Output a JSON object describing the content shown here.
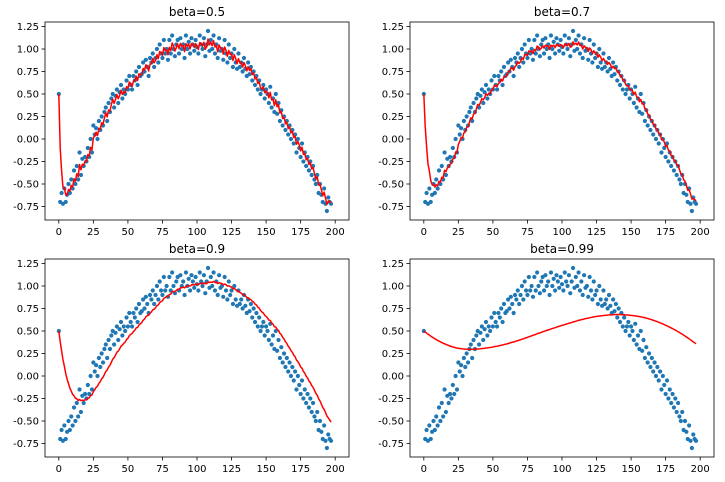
{
  "chart_data": [
    {
      "type": "scatter",
      "title": "beta=0.5",
      "beta": 0.5,
      "xlim": [
        -10,
        210
      ],
      "ylim": [
        -0.9,
        1.3
      ],
      "xticks": [
        0,
        25,
        50,
        75,
        100,
        125,
        150,
        175,
        200
      ],
      "yticks": [
        -0.75,
        -0.5,
        -0.25,
        0.0,
        0.25,
        0.5,
        0.75,
        1.0,
        1.25
      ],
      "series": [
        {
          "kind": "points",
          "color": "#1f77b4",
          "ref": "noisy_points"
        },
        {
          "kind": "line",
          "color": "#ff0000",
          "ref": "ewa"
        }
      ]
    },
    {
      "type": "scatter",
      "title": "beta=0.7",
      "beta": 0.7,
      "xlim": [
        -10,
        210
      ],
      "ylim": [
        -0.9,
        1.3
      ],
      "xticks": [
        0,
        25,
        50,
        75,
        100,
        125,
        150,
        175,
        200
      ],
      "yticks": [
        -0.75,
        -0.5,
        -0.25,
        0.0,
        0.25,
        0.5,
        0.75,
        1.0,
        1.25
      ],
      "series": [
        {
          "kind": "points",
          "color": "#1f77b4",
          "ref": "noisy_points"
        },
        {
          "kind": "line",
          "color": "#ff0000",
          "ref": "ewa"
        }
      ]
    },
    {
      "type": "scatter",
      "title": "beta=0.9",
      "beta": 0.9,
      "xlim": [
        -10,
        210
      ],
      "ylim": [
        -0.9,
        1.3
      ],
      "xticks": [
        0,
        25,
        50,
        75,
        100,
        125,
        150,
        175,
        200
      ],
      "yticks": [
        -0.75,
        -0.5,
        -0.25,
        0.0,
        0.25,
        0.5,
        0.75,
        1.0,
        1.25
      ],
      "series": [
        {
          "kind": "points",
          "color": "#1f77b4",
          "ref": "noisy_points"
        },
        {
          "kind": "line",
          "color": "#ff0000",
          "ref": "ewa"
        }
      ]
    },
    {
      "type": "scatter",
      "title": "beta=0.99",
      "beta": 0.99,
      "xlim": [
        -10,
        210
      ],
      "ylim": [
        -0.9,
        1.3
      ],
      "xticks": [
        0,
        25,
        50,
        75,
        100,
        125,
        150,
        175,
        200
      ],
      "yticks": [
        -0.75,
        -0.5,
        -0.25,
        0.0,
        0.25,
        0.5,
        0.75,
        1.0,
        1.25
      ],
      "series": [
        {
          "kind": "points",
          "color": "#1f77b4",
          "ref": "noisy_points"
        },
        {
          "kind": "line",
          "color": "#ff0000",
          "ref": "ewa"
        }
      ]
    }
  ],
  "noisy_points": {
    "x_start": 0,
    "x_step": 1,
    "y": [
      0.5,
      -0.7,
      -0.6,
      -0.72,
      -0.55,
      -0.7,
      -0.62,
      -0.5,
      -0.6,
      -0.45,
      -0.55,
      -0.35,
      -0.5,
      -0.3,
      -0.45,
      -0.15,
      -0.4,
      -0.22,
      -0.3,
      -0.2,
      -0.25,
      -0.1,
      -0.2,
      0.0,
      -0.15,
      0.15,
      0.05,
      0.12,
      0.0,
      0.2,
      0.1,
      0.25,
      0.15,
      0.3,
      0.35,
      0.2,
      0.4,
      0.3,
      0.45,
      0.5,
      0.35,
      0.48,
      0.55,
      0.4,
      0.52,
      0.6,
      0.45,
      0.55,
      0.5,
      0.65,
      0.55,
      0.7,
      0.6,
      0.55,
      0.7,
      0.65,
      0.75,
      0.6,
      0.8,
      0.7,
      0.72,
      0.85,
      0.75,
      0.88,
      0.8,
      0.7,
      0.9,
      0.85,
      0.95,
      0.8,
      0.9,
      1.0,
      0.85,
      1.05,
      0.95,
      0.9,
      1.1,
      0.95,
      1.0,
      0.88,
      1.1,
      0.95,
      1.15,
      1.0,
      0.92,
      1.05,
      1.1,
      0.95,
      1.12,
      1.0,
      1.05,
      0.9,
      1.15,
      1.0,
      1.08,
      0.95,
      1.12,
      1.05,
      0.98,
      1.1,
      1.02,
      0.95,
      1.15,
      1.05,
      1.0,
      1.12,
      0.92,
      1.05,
      1.2,
      0.98,
      1.1,
      1.0,
      1.15,
      0.95,
      1.05,
      0.9,
      1.12,
      0.98,
      1.0,
      0.88,
      1.1,
      0.95,
      0.85,
      1.05,
      0.9,
      0.95,
      0.8,
      1.0,
      0.85,
      0.78,
      0.95,
      0.8,
      0.85,
      0.75,
      0.9,
      0.78,
      0.7,
      0.85,
      0.72,
      0.8,
      0.65,
      0.75,
      0.6,
      0.7,
      0.55,
      0.65,
      0.5,
      0.55,
      0.6,
      0.45,
      0.55,
      0.5,
      0.4,
      0.58,
      0.35,
      0.45,
      0.3,
      0.5,
      0.28,
      0.4,
      0.2,
      0.32,
      0.15,
      0.25,
      0.1,
      0.2,
      0.05,
      0.15,
      0.0,
      0.1,
      -0.05,
      0.05,
      -0.15,
      0.0,
      -0.1,
      -0.2,
      -0.05,
      -0.25,
      -0.15,
      -0.3,
      -0.2,
      -0.35,
      -0.25,
      -0.4,
      -0.3,
      -0.45,
      -0.5,
      -0.4,
      -0.6,
      -0.5,
      -0.62,
      -0.7,
      -0.55,
      -0.72,
      -0.8,
      -0.65,
      -0.7,
      -0.72
    ]
  },
  "style": {
    "point_color": "#1f77b4",
    "line_color": "#ff0000",
    "axes_edge_color": "#000000",
    "background": "#ffffff"
  }
}
